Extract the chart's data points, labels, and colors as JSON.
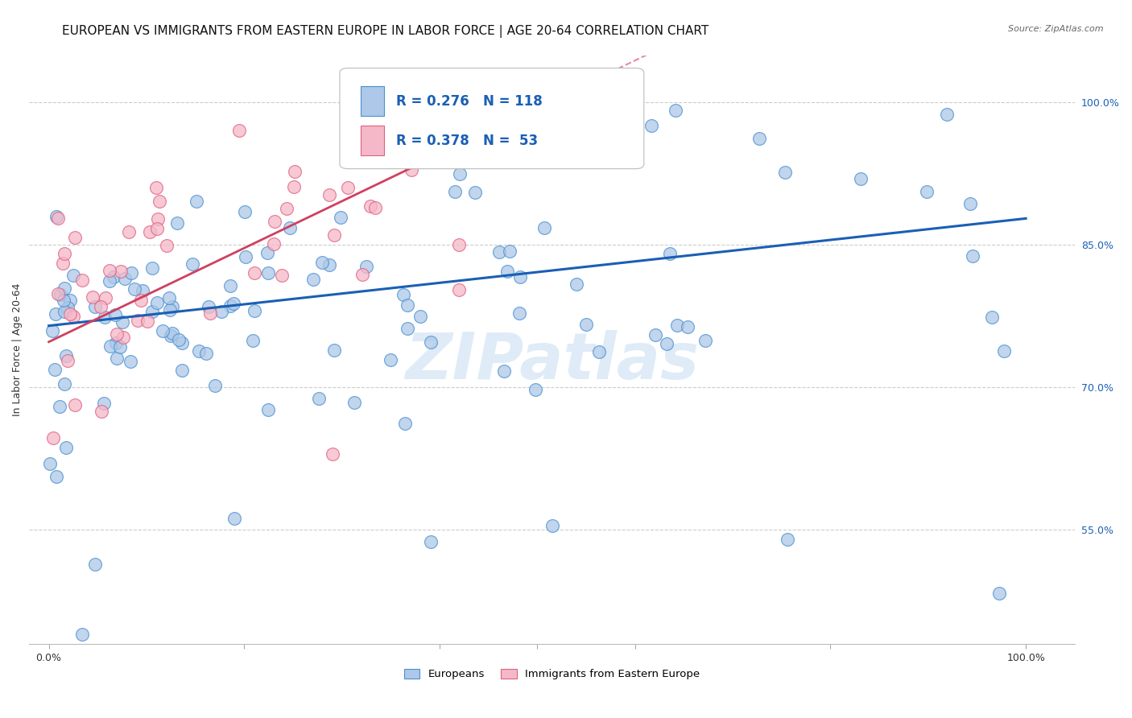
{
  "title": "EUROPEAN VS IMMIGRANTS FROM EASTERN EUROPE IN LABOR FORCE | AGE 20-64 CORRELATION CHART",
  "source": "Source: ZipAtlas.com",
  "ylabel": "In Labor Force | Age 20-64",
  "ytick_labels": [
    "100.0%",
    "85.0%",
    "70.0%",
    "55.0%"
  ],
  "ytick_values": [
    1.0,
    0.85,
    0.7,
    0.55
  ],
  "xlim": [
    -0.02,
    1.05
  ],
  "ylim": [
    0.43,
    1.05
  ],
  "legend_blue_R": "R = 0.276",
  "legend_blue_N": "N = 118",
  "legend_pink_R": "R = 0.378",
  "legend_pink_N": "N =  53",
  "legend_label_blue": "Europeans",
  "legend_label_pink": "Immigrants from Eastern Europe",
  "blue_fill": "#adc8e8",
  "blue_edge": "#4a90d0",
  "pink_fill": "#f5b8c8",
  "pink_edge": "#e06080",
  "blue_line_color": "#1a5fb4",
  "pink_line_color": "#d04060",
  "watermark": "ZIPatlas",
  "blue_line_x0": 0.0,
  "blue_line_x1": 1.0,
  "blue_line_y0": 0.765,
  "blue_line_y1": 0.878,
  "pink_line_x0": 0.0,
  "pink_line_x1": 0.5,
  "pink_line_y0": 0.748,
  "pink_line_y1": 0.995,
  "title_fontsize": 11,
  "axis_label_fontsize": 9,
  "tick_fontsize": 9,
  "legend_fontsize": 12,
  "source_fontsize": 8
}
